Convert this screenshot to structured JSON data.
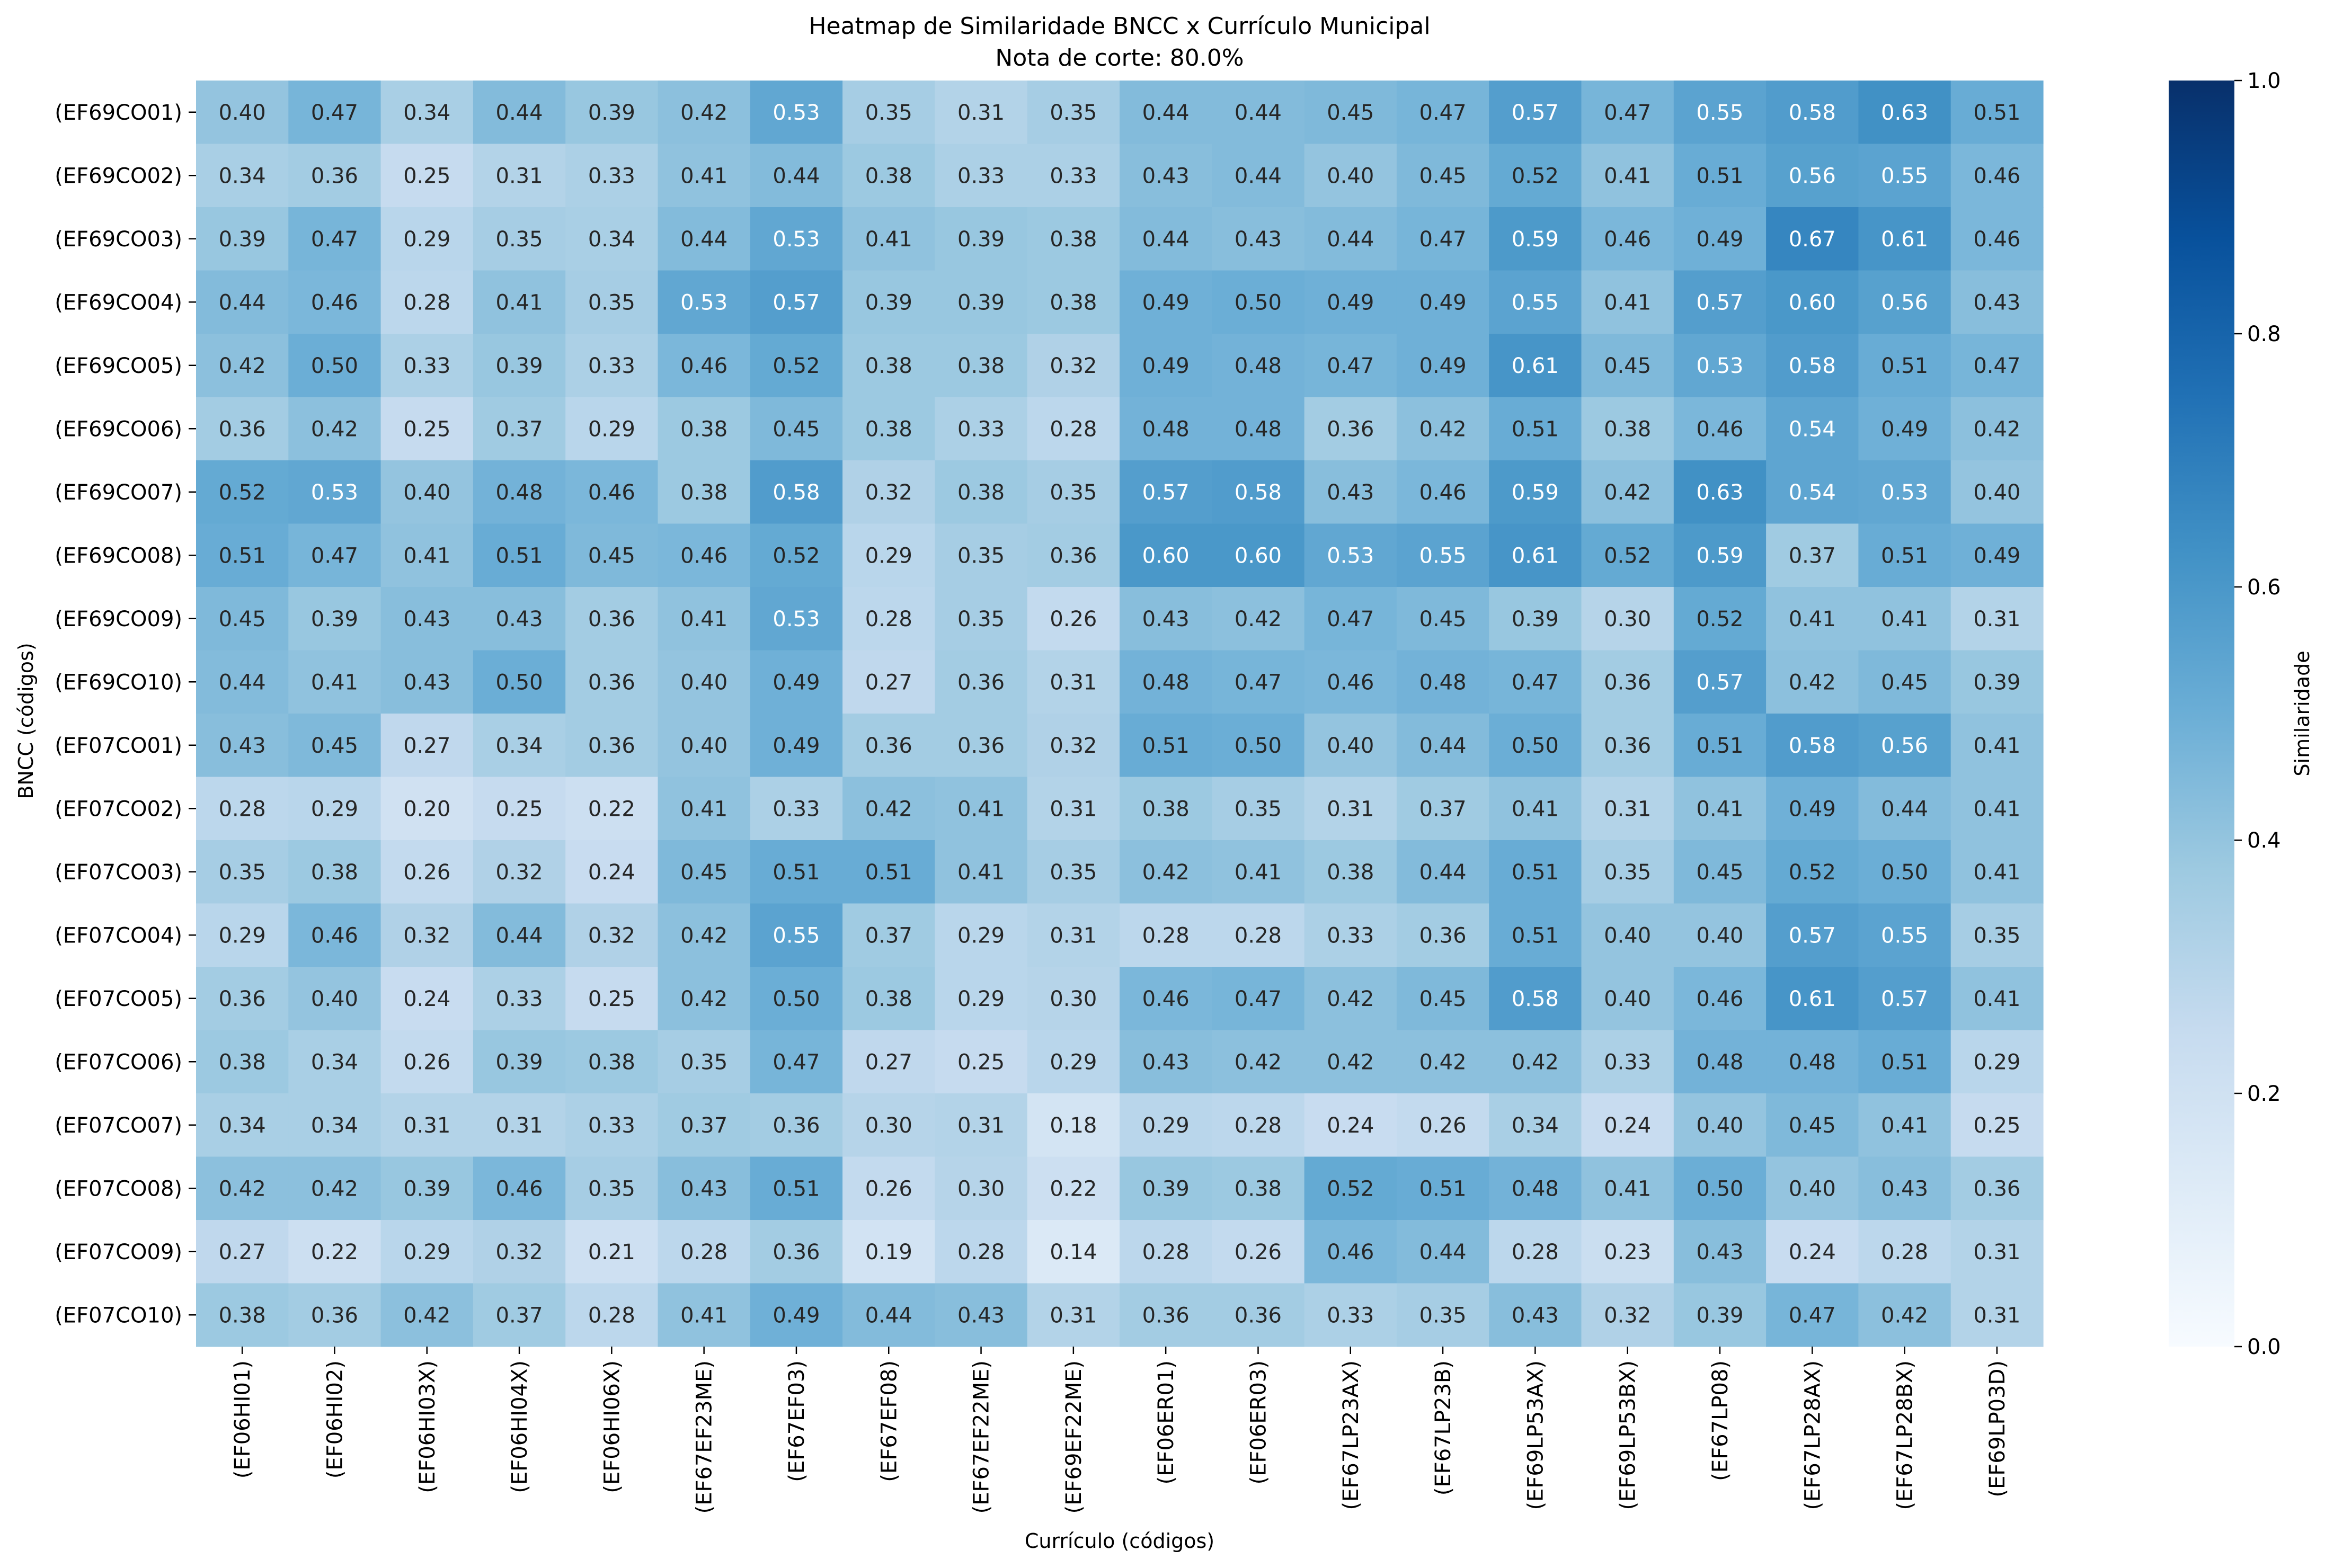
{
  "chart_data": {
    "type": "heatmap",
    "title": "Heatmap de Similaridade BNCC x Currículo Municipal",
    "subtitle": "Nota de corte: 80.0%",
    "xlabel": "Currículo (códigos)",
    "ylabel": "BNCC (códigos)",
    "colorbar_label": "Similaridade",
    "colorbar_range": [
      0.0,
      1.0
    ],
    "colorbar_ticks": [
      "0.0",
      "0.2",
      "0.4",
      "0.6",
      "0.8",
      "1.0"
    ],
    "colormap": "Blues",
    "x_labels": [
      "(EF06HI01)",
      "(EF06HI02)",
      "(EF06HI03X)",
      "(EF06HI04X)",
      "(EF06HI06X)",
      "(EF67EF23ME)",
      "(EF67EF03)",
      "(EF67EF08)",
      "(EF67EF22ME)",
      "(EF69EF22ME)",
      "(EF06ER01)",
      "(EF06ER03)",
      "(EF67LP23AX)",
      "(EF67LP23B)",
      "(EF69LP53AX)",
      "(EF69LP53BX)",
      "(EF67LP08)",
      "(EF67LP28AX)",
      "(EF67LP28BX)",
      "(EF69LP03D)"
    ],
    "y_labels": [
      "(EF69CO01)",
      "(EF69CO02)",
      "(EF69CO03)",
      "(EF69CO04)",
      "(EF69CO05)",
      "(EF69CO06)",
      "(EF69CO07)",
      "(EF69CO08)",
      "(EF69CO09)",
      "(EF69CO10)",
      "(EF07CO01)",
      "(EF07CO02)",
      "(EF07CO03)",
      "(EF07CO04)",
      "(EF07CO05)",
      "(EF07CO06)",
      "(EF07CO07)",
      "(EF07CO08)",
      "(EF07CO09)",
      "(EF07CO10)"
    ],
    "values": [
      [
        0.4,
        0.47,
        0.34,
        0.44,
        0.39,
        0.42,
        0.53,
        0.35,
        0.31,
        0.35,
        0.44,
        0.44,
        0.45,
        0.47,
        0.57,
        0.47,
        0.55,
        0.58,
        0.63,
        0.51
      ],
      [
        0.34,
        0.36,
        0.25,
        0.31,
        0.33,
        0.41,
        0.44,
        0.38,
        0.33,
        0.33,
        0.43,
        0.44,
        0.4,
        0.45,
        0.52,
        0.41,
        0.51,
        0.56,
        0.55,
        0.46
      ],
      [
        0.39,
        0.47,
        0.29,
        0.35,
        0.34,
        0.44,
        0.53,
        0.41,
        0.39,
        0.38,
        0.44,
        0.43,
        0.44,
        0.47,
        0.59,
        0.46,
        0.49,
        0.67,
        0.61,
        0.46
      ],
      [
        0.44,
        0.46,
        0.28,
        0.41,
        0.35,
        0.53,
        0.57,
        0.39,
        0.39,
        0.38,
        0.49,
        0.5,
        0.49,
        0.49,
        0.55,
        0.41,
        0.57,
        0.6,
        0.56,
        0.43
      ],
      [
        0.42,
        0.5,
        0.33,
        0.39,
        0.33,
        0.46,
        0.52,
        0.38,
        0.38,
        0.32,
        0.49,
        0.48,
        0.47,
        0.49,
        0.61,
        0.45,
        0.53,
        0.58,
        0.51,
        0.47
      ],
      [
        0.36,
        0.42,
        0.25,
        0.37,
        0.29,
        0.38,
        0.45,
        0.38,
        0.33,
        0.28,
        0.48,
        0.48,
        0.36,
        0.42,
        0.51,
        0.38,
        0.46,
        0.54,
        0.49,
        0.42
      ],
      [
        0.52,
        0.53,
        0.4,
        0.48,
        0.46,
        0.38,
        0.58,
        0.32,
        0.38,
        0.35,
        0.57,
        0.58,
        0.43,
        0.46,
        0.59,
        0.42,
        0.63,
        0.54,
        0.53,
        0.4
      ],
      [
        0.51,
        0.47,
        0.41,
        0.51,
        0.45,
        0.46,
        0.52,
        0.29,
        0.35,
        0.36,
        0.6,
        0.6,
        0.53,
        0.55,
        0.61,
        0.52,
        0.59,
        0.37,
        0.51,
        0.49
      ],
      [
        0.45,
        0.39,
        0.43,
        0.43,
        0.36,
        0.41,
        0.53,
        0.28,
        0.35,
        0.26,
        0.43,
        0.42,
        0.47,
        0.45,
        0.39,
        0.3,
        0.52,
        0.41,
        0.41,
        0.31
      ],
      [
        0.44,
        0.41,
        0.43,
        0.5,
        0.36,
        0.4,
        0.49,
        0.27,
        0.36,
        0.31,
        0.48,
        0.47,
        0.46,
        0.48,
        0.47,
        0.36,
        0.57,
        0.42,
        0.45,
        0.39
      ],
      [
        0.43,
        0.45,
        0.27,
        0.34,
        0.36,
        0.4,
        0.49,
        0.36,
        0.36,
        0.32,
        0.51,
        0.5,
        0.4,
        0.44,
        0.5,
        0.36,
        0.51,
        0.58,
        0.56,
        0.41
      ],
      [
        0.28,
        0.29,
        0.2,
        0.25,
        0.22,
        0.41,
        0.33,
        0.42,
        0.41,
        0.31,
        0.38,
        0.35,
        0.31,
        0.37,
        0.41,
        0.31,
        0.41,
        0.49,
        0.44,
        0.41
      ],
      [
        0.35,
        0.38,
        0.26,
        0.32,
        0.24,
        0.45,
        0.51,
        0.51,
        0.41,
        0.35,
        0.42,
        0.41,
        0.38,
        0.44,
        0.51,
        0.35,
        0.45,
        0.52,
        0.5,
        0.41
      ],
      [
        0.29,
        0.46,
        0.32,
        0.44,
        0.32,
        0.42,
        0.55,
        0.37,
        0.29,
        0.31,
        0.28,
        0.28,
        0.33,
        0.36,
        0.51,
        0.4,
        0.4,
        0.57,
        0.55,
        0.35
      ],
      [
        0.36,
        0.4,
        0.24,
        0.33,
        0.25,
        0.42,
        0.5,
        0.38,
        0.29,
        0.3,
        0.46,
        0.47,
        0.42,
        0.45,
        0.58,
        0.4,
        0.46,
        0.61,
        0.57,
        0.41
      ],
      [
        0.38,
        0.34,
        0.26,
        0.39,
        0.38,
        0.35,
        0.47,
        0.27,
        0.25,
        0.29,
        0.43,
        0.42,
        0.42,
        0.42,
        0.42,
        0.33,
        0.48,
        0.48,
        0.51,
        0.29
      ],
      [
        0.34,
        0.34,
        0.31,
        0.31,
        0.33,
        0.37,
        0.36,
        0.3,
        0.31,
        0.18,
        0.29,
        0.28,
        0.24,
        0.26,
        0.34,
        0.24,
        0.4,
        0.45,
        0.41,
        0.25
      ],
      [
        0.42,
        0.42,
        0.39,
        0.46,
        0.35,
        0.43,
        0.51,
        0.26,
        0.3,
        0.22,
        0.39,
        0.38,
        0.52,
        0.51,
        0.48,
        0.41,
        0.5,
        0.4,
        0.43,
        0.36
      ],
      [
        0.27,
        0.22,
        0.29,
        0.32,
        0.21,
        0.28,
        0.36,
        0.19,
        0.28,
        0.14,
        0.28,
        0.26,
        0.46,
        0.44,
        0.28,
        0.23,
        0.43,
        0.24,
        0.28,
        0.31
      ],
      [
        0.38,
        0.36,
        0.42,
        0.37,
        0.28,
        0.41,
        0.49,
        0.44,
        0.43,
        0.31,
        0.36,
        0.36,
        0.33,
        0.35,
        0.43,
        0.32,
        0.39,
        0.47,
        0.42,
        0.31
      ]
    ]
  }
}
